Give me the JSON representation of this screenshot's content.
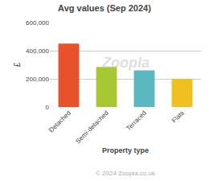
{
  "chart_data": {
    "type": "bar",
    "title": "Avg values (Sep 2024)",
    "categories": [
      "Detached",
      "Semi-detached",
      "Terraced",
      "Flats"
    ],
    "values": [
      450000,
      285000,
      260000,
      200000
    ],
    "colors": [
      "#E8522A",
      "#A8C833",
      "#5BB8C1",
      "#F0C020"
    ],
    "xlabel": "Property type",
    "ylabel": "£",
    "ylim": [
      0,
      600000
    ],
    "yticks": [
      0,
      {
        "value": 200000,
        "label": "200,000"
      },
      {
        "value": 400000,
        "label": "400,000"
      },
      {
        "value": 600000,
        "label": "600,000"
      }
    ],
    "grid": true,
    "annotations": [
      "Zoopla",
      "© 2024 Zoopla.co.uk"
    ]
  }
}
